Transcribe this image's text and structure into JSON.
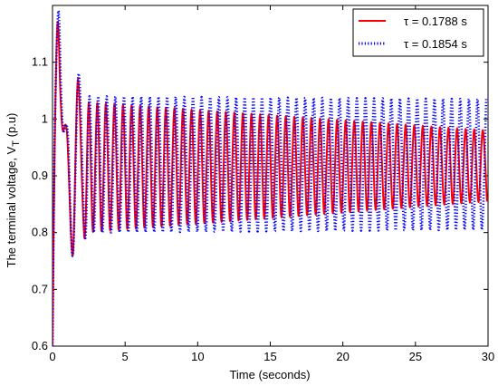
{
  "chart_data": {
    "type": "line",
    "xlabel": "Time (seconds)",
    "ylabel_main": "The terminal voltage, V",
    "ylabel_sub": "T",
    "ylabel_unit": " (p.u)",
    "xlim": [
      0,
      30
    ],
    "ylim": [
      0.6,
      1.2
    ],
    "x_ticks": [
      0,
      5,
      10,
      15,
      20,
      25,
      30
    ],
    "y_ticks": [
      0.6,
      0.7,
      0.8,
      0.9,
      1,
      1.1
    ],
    "y_tick_labels": [
      "0.6",
      "0.7",
      "0.8",
      "0.9",
      "1",
      "1.1"
    ],
    "legend_position": "top-right",
    "grid": false,
    "series": [
      {
        "name": "τ = 0.1788 s",
        "color": "#ff0000",
        "style": "solid",
        "initial": [
          [
            0.0,
            0.6
          ],
          [
            0.15,
            0.95
          ],
          [
            0.35,
            1.17
          ],
          [
            0.55,
            1.04
          ],
          [
            0.7,
            0.98
          ],
          [
            1.0,
            0.975
          ],
          [
            1.4,
            0.76
          ],
          [
            1.75,
            1.07
          ],
          [
            2.2,
            0.79
          ]
        ],
        "oscillation": {
          "start": 2.2,
          "end": 30.0,
          "period": 0.59,
          "max_start": 1.03,
          "max_end": 0.98,
          "min_start": 0.8,
          "min_end": 0.855
        }
      },
      {
        "name": "τ = 0.1854 s",
        "color": "#0000ff",
        "style": "dotted",
        "initial": [
          [
            0.0,
            0.6
          ],
          [
            0.15,
            0.97
          ],
          [
            0.4,
            1.19
          ],
          [
            0.6,
            1.04
          ],
          [
            0.75,
            0.98
          ],
          [
            1.05,
            0.975
          ],
          [
            1.4,
            0.76
          ],
          [
            1.8,
            1.08
          ],
          [
            2.25,
            0.79
          ]
        ],
        "oscillation": {
          "start": 2.25,
          "end": 30.0,
          "period": 0.594,
          "max_start": 1.04,
          "max_end": 1.035,
          "min_start": 0.8,
          "min_end": 0.805
        }
      }
    ]
  }
}
